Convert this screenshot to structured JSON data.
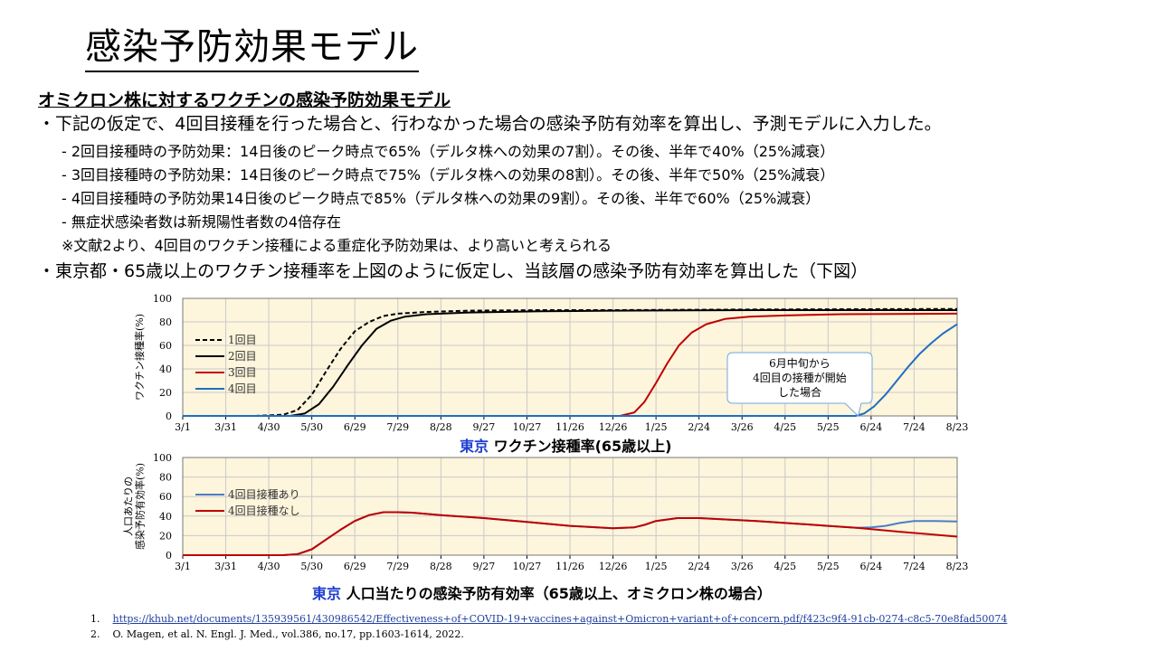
{
  "page": {
    "title": "感染予防効果モデル",
    "subheading": "オミクロン株に対するワクチンの感染予防効果モデル",
    "bullet1": "・下記の仮定で、4回目接種を行った場合と、行わなかった場合の感染予防有効率を算出し、予測モデルに入力した。",
    "sub_items": [
      "- 2回目接種時の予防効果：14日後のピーク時点で65%（デルタ株への効果の7割）。その後、半年で40%（25%減衰）",
      "- 3回目接種時の予防効果：14日後のピーク時点で75%（デルタ株への効果の8割）。その後、半年で50%（25%減衰）",
      "- 4回目接種時の予防効果14日後のピーク時点で85%（デルタ株への効果の9割）。その後、半年で60%（25%減衰）",
      "- 無症状感染者数は新規陽性者数の4倍存在",
      "※文献2より、4回目のワクチン接種による重症化予防効果は、より高いと考えられる"
    ],
    "bullet2": "・東京都・65歳以上のワクチン接種率を上図のように仮定し、当該層の感染予防有効率を算出した（下図）",
    "references": [
      {
        "num": "1.",
        "text": "https://khub.net/documents/135939561/430986542/Effectiveness+of+COVID-19+vaccines+against+Omicron+variant+of+concern.pdf/f423c9f4-91cb-0274-c8c5-70e8fad50074"
      },
      {
        "num": "2.",
        "text": "O. Magen, et al. N. Engl. J. Med., vol.386, no.17, pp.1603-1614, 2022."
      }
    ]
  },
  "chart_data": [
    {
      "type": "line",
      "title_location": "東京",
      "title": "ワクチン接種率(65歳以上)",
      "ylabel": "ワクチン接種率(%)",
      "xlabel": "",
      "ylim": [
        0,
        100
      ],
      "yticks": [
        0,
        20,
        40,
        60,
        80,
        100
      ],
      "xticks": [
        "3/1",
        "3/31",
        "4/30",
        "5/30",
        "6/29",
        "7/29",
        "8/28",
        "9/27",
        "10/27",
        "11/26",
        "12/26",
        "1/25",
        "2/24",
        "3/26",
        "4/25",
        "5/25",
        "6/24",
        "7/24",
        "8/23"
      ],
      "grid": true,
      "legend_position": "left",
      "background": "#fdf5dc",
      "annotation": "6月中旬から\n4回目の接種が開始\nした場合",
      "series": [
        {
          "name": "1回目",
          "color": "#000000",
          "style": "dashed",
          "points": [
            [
              0,
              0
            ],
            [
              50,
              0
            ],
            [
              70,
              1
            ],
            [
              80,
              5
            ],
            [
              90,
              18
            ],
            [
              100,
              38
            ],
            [
              110,
              57
            ],
            [
              120,
              72
            ],
            [
              130,
              80
            ],
            [
              140,
              85
            ],
            [
              150,
              87
            ],
            [
              170,
              88.5
            ],
            [
              200,
              89.5
            ],
            [
              250,
              90
            ],
            [
              300,
              90
            ],
            [
              400,
              90.5
            ],
            [
              540,
              91
            ]
          ]
        },
        {
          "name": "2回目",
          "color": "#000000",
          "style": "solid",
          "points": [
            [
              0,
              0
            ],
            [
              75,
              0
            ],
            [
              85,
              2
            ],
            [
              95,
              10
            ],
            [
              105,
              25
            ],
            [
              115,
              43
            ],
            [
              125,
              60
            ],
            [
              135,
              74
            ],
            [
              145,
              81
            ],
            [
              155,
              84.5
            ],
            [
              170,
              86.5
            ],
            [
              200,
              88
            ],
            [
              250,
              89
            ],
            [
              300,
              89.5
            ],
            [
              400,
              90
            ],
            [
              540,
              90
            ]
          ]
        },
        {
          "name": "3回目",
          "color": "#c00000",
          "style": "solid",
          "points": [
            [
              0,
              0
            ],
            [
              305,
              0
            ],
            [
              315,
              3
            ],
            [
              322,
              12
            ],
            [
              330,
              28
            ],
            [
              338,
              45
            ],
            [
              346,
              60
            ],
            [
              355,
              71
            ],
            [
              365,
              78
            ],
            [
              378,
              82.5
            ],
            [
              395,
              84.5
            ],
            [
              420,
              85.5
            ],
            [
              460,
              86.5
            ],
            [
              540,
              87
            ]
          ]
        },
        {
          "name": "4回目",
          "color": "#1f6fbf",
          "style": "solid",
          "points": [
            [
              0,
              0
            ],
            [
              469,
              0
            ],
            [
              475,
              2
            ],
            [
              482,
              8
            ],
            [
              490,
              18
            ],
            [
              498,
              30
            ],
            [
              506,
              42
            ],
            [
              514,
              53
            ],
            [
              522,
              62
            ],
            [
              530,
              70
            ],
            [
              540,
              78
            ]
          ]
        }
      ]
    },
    {
      "type": "line",
      "title_location": "東京",
      "title": "人口当たりの感染予防有効率（65歳以上、オミクロン株の場合）",
      "ylabel": "人口あたりの\n感染予防有効率(%)",
      "xlabel": "",
      "ylim": [
        0,
        100
      ],
      "yticks": [
        0,
        20,
        40,
        60,
        80,
        100
      ],
      "xticks": [
        "3/1",
        "3/31",
        "4/30",
        "5/30",
        "6/29",
        "7/29",
        "8/28",
        "9/27",
        "10/27",
        "11/26",
        "12/26",
        "1/25",
        "2/24",
        "3/26",
        "4/25",
        "5/25",
        "6/24",
        "7/24",
        "8/23"
      ],
      "grid": true,
      "legend_position": "left",
      "background": "#fdf5dc",
      "series": [
        {
          "name": "4回目接種あり",
          "color": "#4a7fc6",
          "style": "solid",
          "points": [
            [
              0,
              0
            ],
            [
              70,
              0
            ],
            [
              80,
              1
            ],
            [
              90,
              6
            ],
            [
              100,
              16
            ],
            [
              110,
              26
            ],
            [
              120,
              35
            ],
            [
              130,
              41
            ],
            [
              140,
              44
            ],
            [
              150,
              44
            ],
            [
              160,
              43.5
            ],
            [
              180,
              41
            ],
            [
              210,
              38
            ],
            [
              240,
              34
            ],
            [
              270,
              30
            ],
            [
              300,
              27.5
            ],
            [
              315,
              28.5
            ],
            [
              322,
              31
            ],
            [
              330,
              35
            ],
            [
              345,
              38
            ],
            [
              360,
              38
            ],
            [
              400,
              35
            ],
            [
              450,
              30
            ],
            [
              470,
              28
            ],
            [
              480,
              28.5
            ],
            [
              490,
              30
            ],
            [
              500,
              33
            ],
            [
              510,
              35
            ],
            [
              525,
              35
            ],
            [
              540,
              34.5
            ]
          ]
        },
        {
          "name": "4回目接種なし",
          "color": "#c00000",
          "style": "solid",
          "points": [
            [
              0,
              0
            ],
            [
              70,
              0
            ],
            [
              80,
              1
            ],
            [
              90,
              6
            ],
            [
              100,
              16
            ],
            [
              110,
              26
            ],
            [
              120,
              35
            ],
            [
              130,
              41
            ],
            [
              140,
              44
            ],
            [
              150,
              44
            ],
            [
              160,
              43.5
            ],
            [
              180,
              41
            ],
            [
              210,
              38
            ],
            [
              240,
              34
            ],
            [
              270,
              30
            ],
            [
              300,
              27.5
            ],
            [
              315,
              28.5
            ],
            [
              322,
              31
            ],
            [
              330,
              35
            ],
            [
              345,
              38
            ],
            [
              360,
              38
            ],
            [
              400,
              35
            ],
            [
              450,
              30
            ],
            [
              470,
              28
            ],
            [
              500,
              24
            ],
            [
              540,
              19
            ]
          ]
        }
      ]
    }
  ]
}
